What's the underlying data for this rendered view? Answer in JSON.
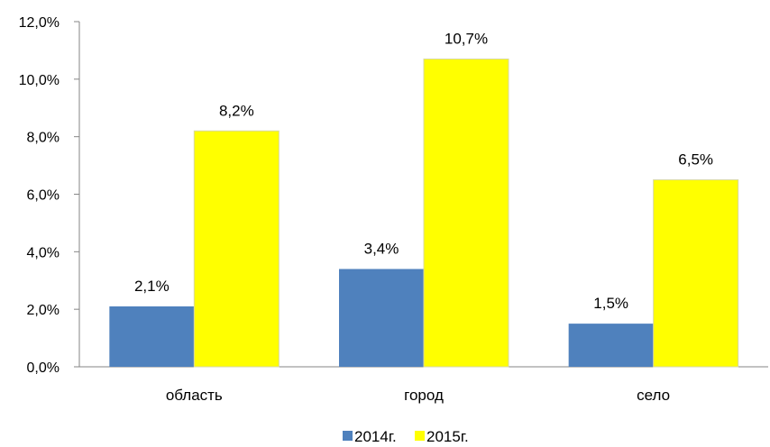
{
  "chart_data": {
    "type": "bar",
    "categories": [
      "область",
      "город",
      "село"
    ],
    "series": [
      {
        "name": "2014г.",
        "color": "#4f81bd",
        "values": [
          2.1,
          3.4,
          1.5
        ],
        "labels": [
          "2,1%",
          "3,4%",
          "1,5%"
        ]
      },
      {
        "name": "2015г.",
        "color": "#ffff00",
        "values": [
          8.2,
          10.7,
          6.5
        ],
        "labels": [
          "8,2%",
          "10,7%",
          "6,5%"
        ]
      }
    ],
    "ylim": [
      0,
      12
    ],
    "yticks": [
      0,
      2,
      4,
      6,
      8,
      10,
      12
    ],
    "ytick_labels": [
      "0,0%",
      "2,0%",
      "4,0%",
      "6,0%",
      "8,0%",
      "10,0%",
      "12,0%"
    ],
    "legend_position": "bottom",
    "grid": false
  }
}
